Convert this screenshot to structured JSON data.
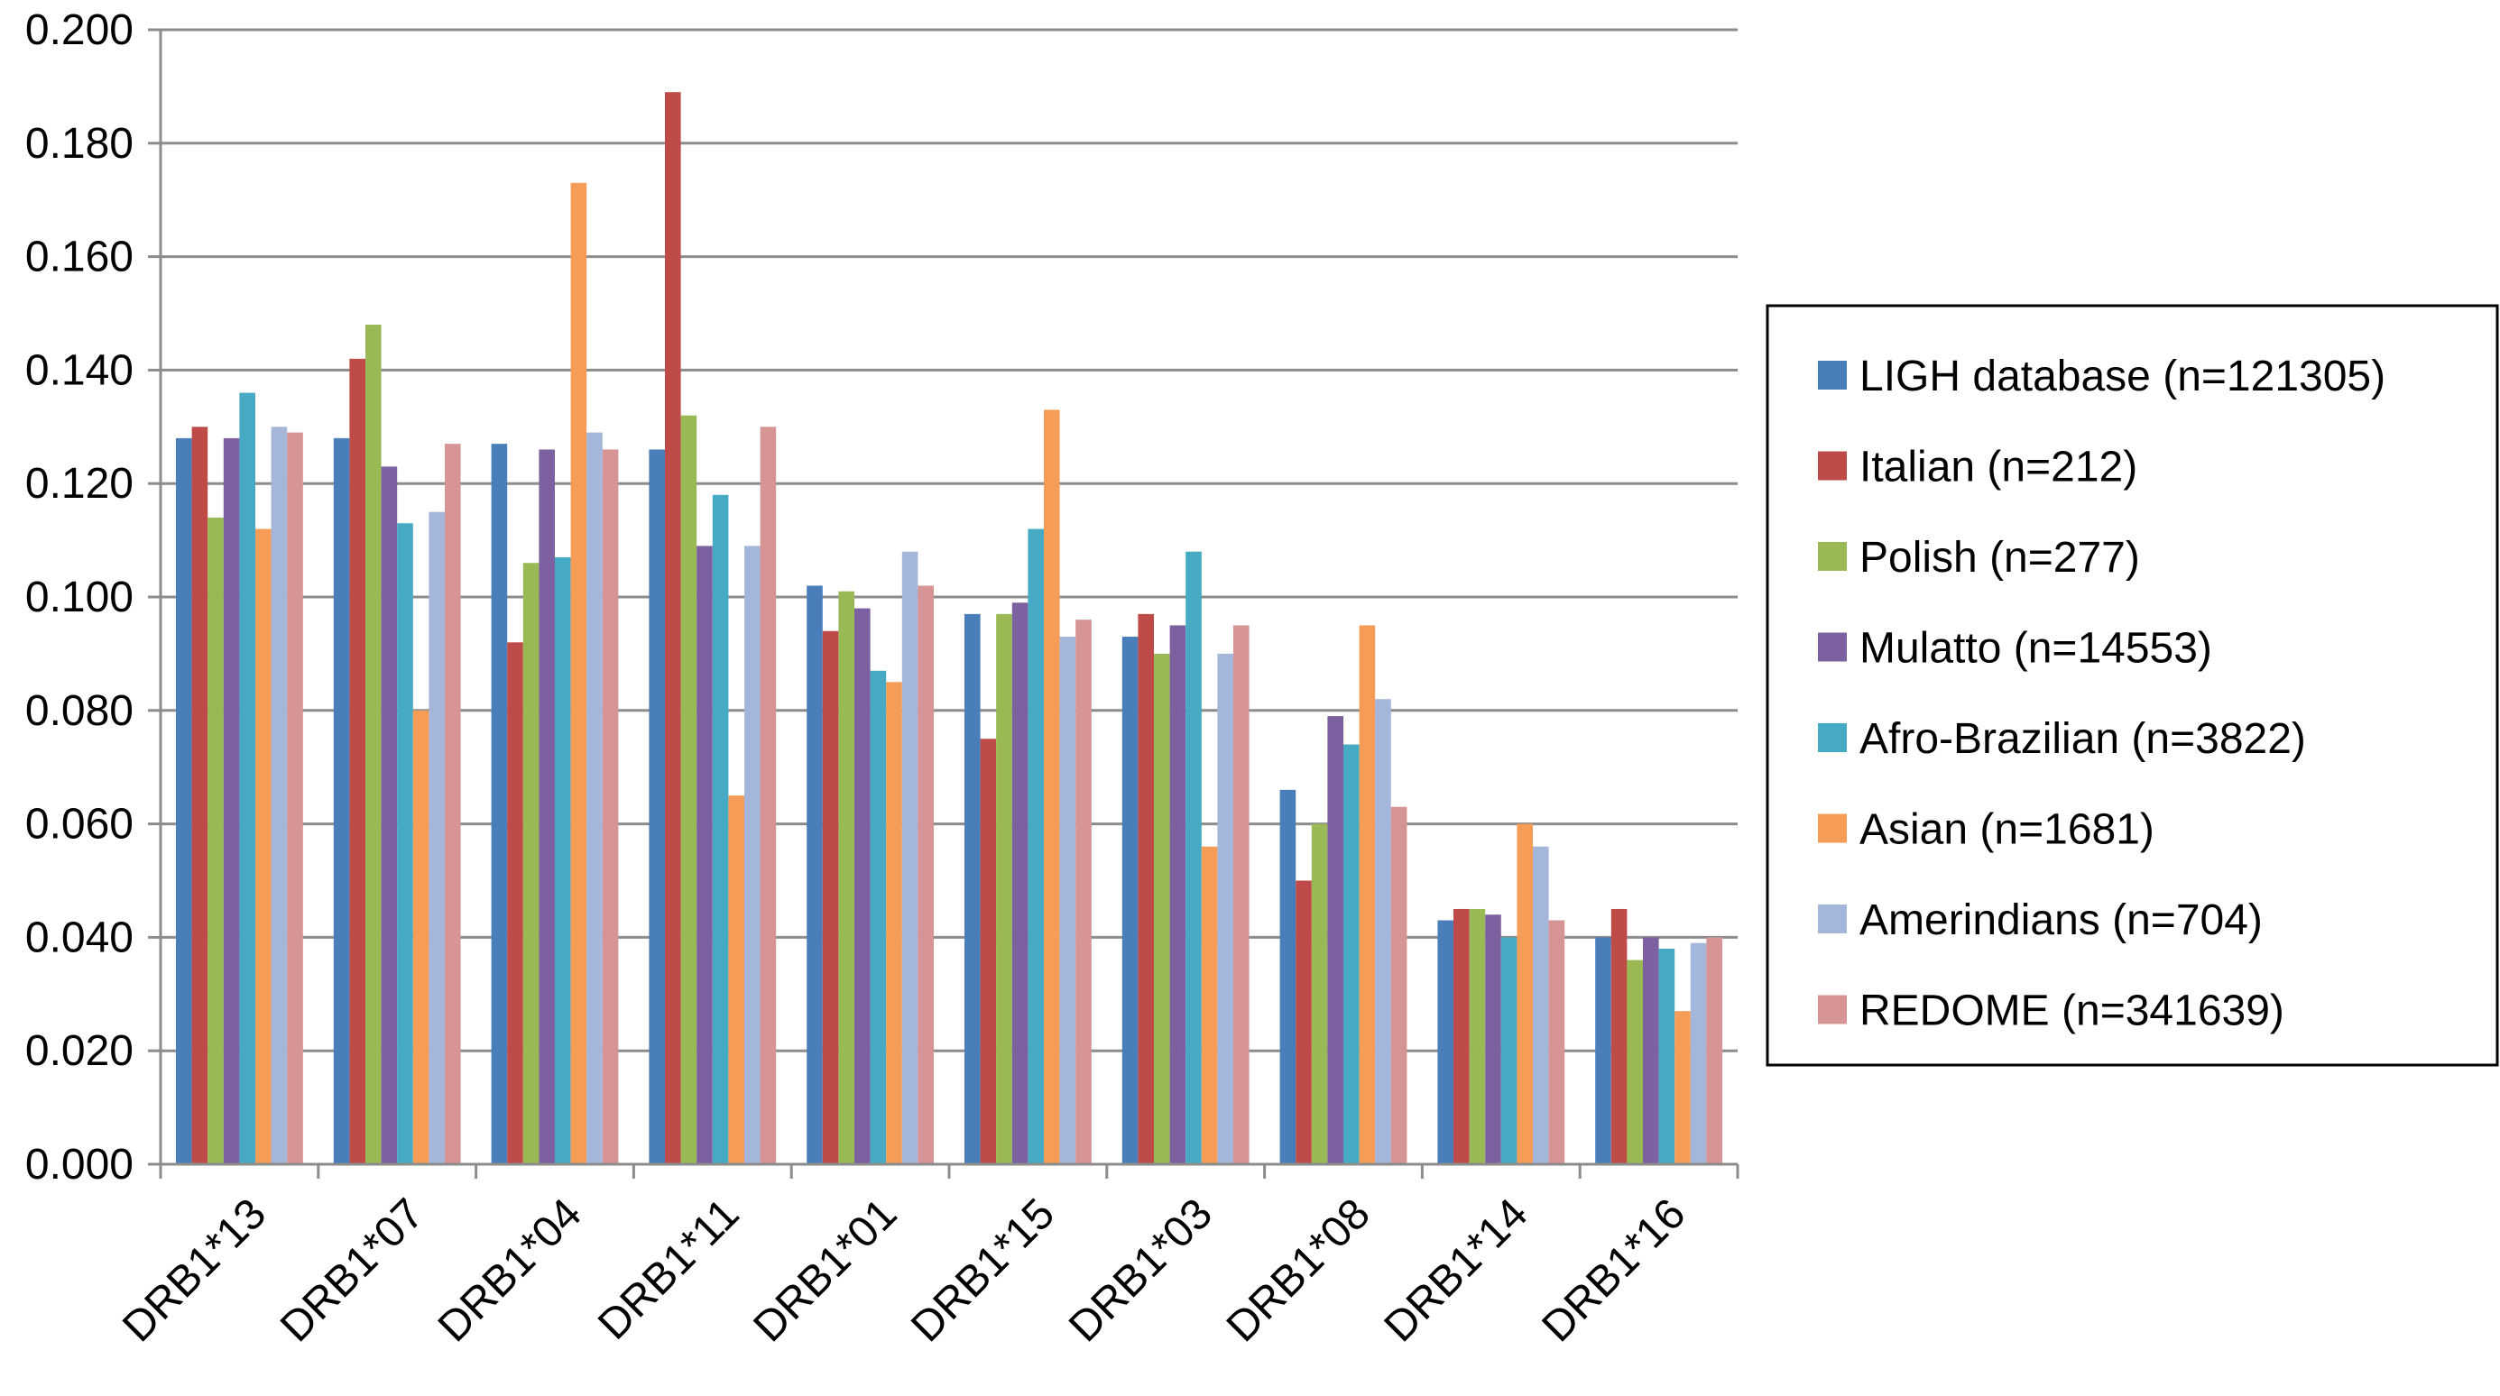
{
  "chart_data": {
    "type": "bar",
    "title": "",
    "xlabel": "",
    "ylabel": "",
    "ylim": [
      0,
      0.2
    ],
    "ytick_step": 0.02,
    "ytick_labels": [
      "0.000",
      "0.020",
      "0.040",
      "0.060",
      "0.080",
      "0.100",
      "0.120",
      "0.140",
      "0.160",
      "0.180",
      "0.200"
    ],
    "grid": "horizontal",
    "legend_position": "right",
    "categories": [
      "DRB1*13",
      "DRB1*07",
      "DRB1*04",
      "DRB1*11",
      "DRB1*01",
      "DRB1*15",
      "DRB1*03",
      "DRB1*08",
      "DRB1*14",
      "DRB1*16"
    ],
    "series": [
      {
        "name": "LIGH database (n=121305)",
        "color": "#4a7ebb",
        "values": [
          0.128,
          0.128,
          0.127,
          0.126,
          0.102,
          0.097,
          0.093,
          0.066,
          0.043,
          0.04
        ]
      },
      {
        "name": "Italian (n=212)",
        "color": "#be4b48",
        "values": [
          0.13,
          0.142,
          0.092,
          0.189,
          0.094,
          0.075,
          0.097,
          0.05,
          0.045,
          0.045
        ]
      },
      {
        "name": "Polish (n=277)",
        "color": "#98b954",
        "values": [
          0.114,
          0.148,
          0.106,
          0.132,
          0.101,
          0.097,
          0.09,
          0.06,
          0.045,
          0.036
        ]
      },
      {
        "name": "Mulatto (n=14553)",
        "color": "#7d60a0",
        "values": [
          0.128,
          0.123,
          0.126,
          0.109,
          0.098,
          0.099,
          0.095,
          0.079,
          0.044,
          0.04
        ]
      },
      {
        "name": "Afro-Brazilian (n=3822)",
        "color": "#46aac4",
        "values": [
          0.136,
          0.113,
          0.107,
          0.118,
          0.087,
          0.112,
          0.108,
          0.074,
          0.04,
          0.038
        ]
      },
      {
        "name": "Asian (n=1681)",
        "color": "#f59d56",
        "values": [
          0.112,
          0.08,
          0.173,
          0.065,
          0.085,
          0.133,
          0.056,
          0.095,
          0.06,
          0.027
        ]
      },
      {
        "name": "Amerindians (n=704)",
        "color": "#a5b6db",
        "values": [
          0.13,
          0.115,
          0.129,
          0.109,
          0.108,
          0.093,
          0.09,
          0.082,
          0.056,
          0.039
        ]
      },
      {
        "name": "REDOME (n=341639)",
        "color": "#d69495",
        "values": [
          0.129,
          0.127,
          0.126,
          0.13,
          0.102,
          0.096,
          0.095,
          0.063,
          0.043,
          0.04
        ]
      }
    ]
  }
}
